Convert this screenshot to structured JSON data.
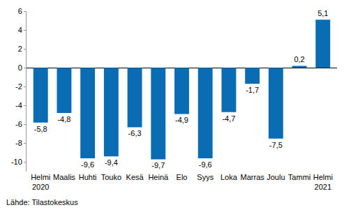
{
  "chart_data": {
    "type": "bar",
    "categories": [
      "Helmi 2020",
      "Maalis",
      "Huhti",
      "Touko",
      "Kesä",
      "Heinä",
      "Elo",
      "Syys",
      "Loka",
      "Marras",
      "Joulu",
      "Tammi",
      "Helmi 2021"
    ],
    "values": [
      -5.8,
      -4.8,
      -9.6,
      -9.4,
      -6.3,
      -9.7,
      -4.9,
      -9.6,
      -4.7,
      -1.7,
      -7.5,
      0.2,
      5.1
    ],
    "value_labels": [
      "-5,8",
      "-4,8",
      "-9,6",
      "-9,4",
      "-6,3",
      "-9,7",
      "-4,9",
      "-9,6",
      "-4,7",
      "-1,7",
      "-7,5",
      "0,2",
      "5,1"
    ],
    "data_labels": true,
    "color": "#0a6cb3",
    "ylim": [
      -11,
      6
    ],
    "yticks": [
      -10,
      -8,
      -6,
      -4,
      -2,
      0,
      2,
      4,
      6
    ],
    "grid": false,
    "annotations": [
      "Lähde: Tilastokeskus"
    ]
  }
}
